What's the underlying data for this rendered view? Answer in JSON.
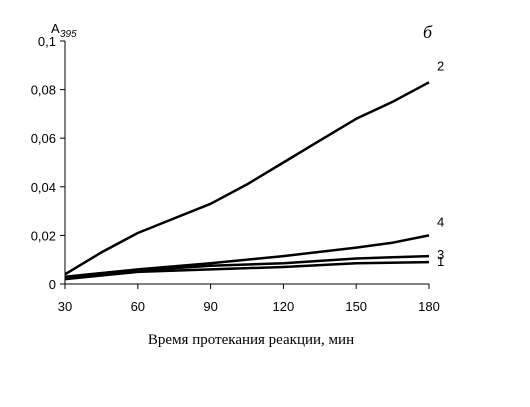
{
  "chart_data": {
    "type": "line",
    "panel_letter": "б",
    "ylabel": {
      "main": "A",
      "sub": "395"
    },
    "xlabel": "Время протекания реакции, мин",
    "xlim": [
      30,
      180
    ],
    "ylim": [
      0,
      0.1
    ],
    "x_ticks": [
      {
        "value": 30,
        "label": "30"
      },
      {
        "value": 60,
        "label": "60"
      },
      {
        "value": 90,
        "label": "90"
      },
      {
        "value": 120,
        "label": "120"
      },
      {
        "value": 150,
        "label": "150"
      },
      {
        "value": 180,
        "label": "180"
      }
    ],
    "y_ticks": [
      {
        "value": 0,
        "label": "0"
      },
      {
        "value": 0.02,
        "label": "0,02"
      },
      {
        "value": 0.04,
        "label": "0,04"
      },
      {
        "value": 0.06,
        "label": "0,06"
      },
      {
        "value": 0.08,
        "label": "0,08"
      },
      {
        "value": 0.1,
        "label": "0,1"
      }
    ],
    "grid": false,
    "line_color": "#000000",
    "series": [
      {
        "name": "1",
        "x": [
          30,
          60,
          90,
          120,
          150,
          180
        ],
        "values": [
          0.002,
          0.005,
          0.006,
          0.007,
          0.0085,
          0.009
        ]
      },
      {
        "name": "3",
        "x": [
          30,
          60,
          90,
          120,
          150,
          180
        ],
        "values": [
          0.0025,
          0.0055,
          0.0075,
          0.0085,
          0.0105,
          0.0115
        ]
      },
      {
        "name": "4",
        "x": [
          30,
          60,
          90,
          120,
          150,
          165,
          180
        ],
        "values": [
          0.003,
          0.006,
          0.0085,
          0.0115,
          0.015,
          0.017,
          0.02
        ]
      },
      {
        "name": "2",
        "x": [
          30,
          45,
          60,
          75,
          90,
          105,
          120,
          135,
          150,
          165,
          180
        ],
        "values": [
          0.004,
          0.013,
          0.021,
          0.027,
          0.033,
          0.041,
          0.05,
          0.059,
          0.068,
          0.075,
          0.083
        ]
      }
    ]
  }
}
